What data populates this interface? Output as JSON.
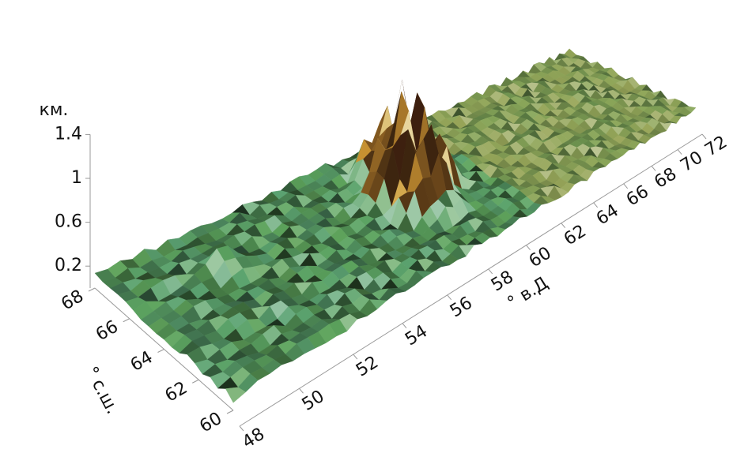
{
  "chart_data": {
    "type": "surface3d",
    "zlabel": "км.",
    "xlabel": "° в.Д",
    "ylabel": "° с.ш.",
    "xlim": [
      48,
      72
    ],
    "xticks": [
      48,
      50,
      52,
      54,
      56,
      58,
      60,
      62,
      64,
      66,
      68,
      70,
      72
    ],
    "ylim": [
      60,
      68
    ],
    "yticks": [
      60,
      62,
      64,
      66,
      68
    ],
    "zlim": [
      0,
      1.4
    ],
    "zticks": [
      0.2,
      0.6,
      1,
      1.4
    ]
  }
}
